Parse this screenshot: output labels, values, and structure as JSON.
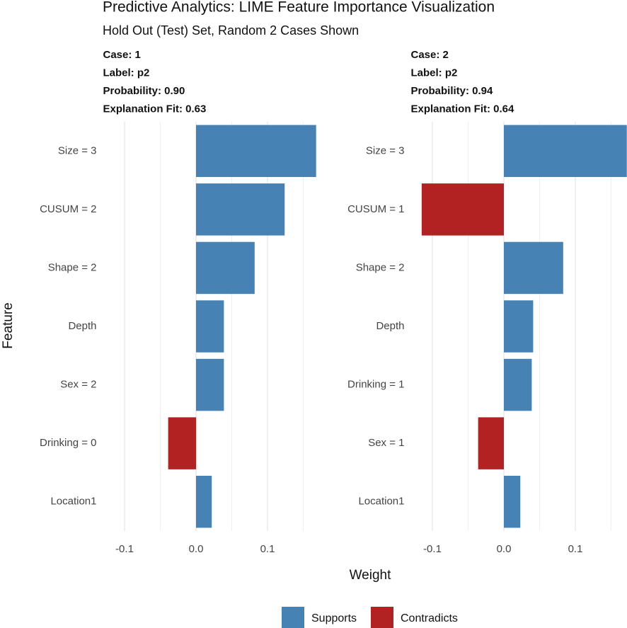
{
  "chart_data": {
    "type": "bar",
    "title": "Predictive Analytics: LIME Feature Importance Visualization",
    "subtitle": "Hold Out (Test) Set, Random 2 Cases Shown",
    "xlabel": "Weight",
    "ylabel": "Feature",
    "legend": [
      {
        "name": "Supports",
        "color": "#4682b4"
      },
      {
        "name": "Contradicts",
        "color": "#b22222"
      }
    ],
    "legend_position": "bottom",
    "grid": true,
    "xlim": [
      -0.15,
      0.17
    ],
    "xticks": [
      -0.1,
      {
        "value": 0,
        "label": "0.0"
      },
      0.1
    ],
    "xminor": [
      -0.05,
      0.05,
      0.15
    ],
    "panels": [
      {
        "case_info": [
          "Case: 1",
          "Label: p2",
          "Probability: 0.90",
          "Explanation Fit: 0.63"
        ],
        "categories": [
          "Size = 3",
          "CUSUM = 2",
          "Shape = 2",
          "Depth",
          "Sex = 2",
          "Drinking = 0",
          "Location1"
        ],
        "values": [
          0.168,
          0.124,
          0.082,
          0.039,
          0.039,
          -0.039,
          0.022
        ]
      },
      {
        "case_info": [
          "Case: 2",
          "Label: p2",
          "Probability: 0.94",
          "Explanation Fit: 0.64"
        ],
        "categories": [
          "Size = 3",
          "CUSUM = 1",
          "Shape = 2",
          "Depth",
          "Drinking = 1",
          "Sex = 1",
          "Location1"
        ],
        "values": [
          0.172,
          -0.115,
          0.083,
          0.041,
          0.039,
          -0.036,
          0.023
        ]
      }
    ]
  }
}
